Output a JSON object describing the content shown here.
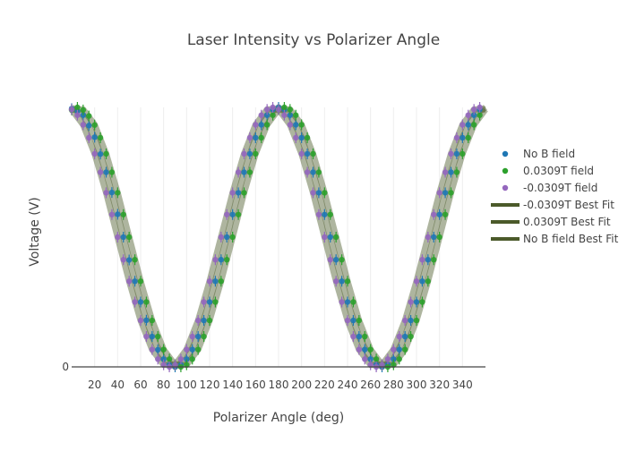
{
  "chart_data": {
    "type": "scatter",
    "title": "Laser Intensity vs Polarizer Angle",
    "xlabel": "Polarizer Angle (deg)",
    "ylabel": "Voltage (V)",
    "xlim": [
      0,
      360
    ],
    "ylim": [
      0,
      1
    ],
    "x_ticks": [
      20,
      40,
      60,
      80,
      100,
      120,
      140,
      160,
      180,
      200,
      220,
      240,
      260,
      280,
      300,
      320,
      340
    ],
    "y_ticks": [
      0
    ],
    "grid": "vertical",
    "legend_position": "right",
    "colors": {
      "no_b": "#1f77b4",
      "pos": "#2ca02c",
      "neg": "#9467bd",
      "fit": "#4b5a2a"
    },
    "series": [
      {
        "name": "No B field",
        "kind": "points",
        "x": [
          0,
          5,
          10,
          15,
          20,
          25,
          30,
          35,
          40,
          45,
          50,
          55,
          60,
          65,
          70,
          75,
          80,
          85,
          90,
          95,
          100,
          105,
          110,
          115,
          120,
          125,
          130,
          135,
          140,
          145,
          150,
          155,
          160,
          165,
          170,
          175,
          180,
          185,
          190,
          195,
          200,
          205,
          210,
          215,
          220,
          225,
          230,
          235,
          240,
          245,
          250,
          255,
          260,
          265,
          270,
          275,
          280,
          285,
          290,
          295,
          300,
          305,
          310,
          315,
          320,
          325,
          330,
          335,
          340,
          345,
          350,
          355
        ],
        "y": [
          0.995,
          0.985,
          0.97,
          0.93,
          0.885,
          0.82,
          0.75,
          0.672,
          0.588,
          0.5,
          0.412,
          0.33,
          0.25,
          0.18,
          0.117,
          0.066,
          0.03,
          0.008,
          0.0,
          0.008,
          0.03,
          0.067,
          0.117,
          0.179,
          0.25,
          0.33,
          0.413,
          0.5,
          0.587,
          0.671,
          0.75,
          0.821,
          0.883,
          0.933,
          0.97,
          0.992,
          1.0,
          0.992,
          0.97,
          0.933,
          0.883,
          0.821,
          0.75,
          0.671,
          0.587,
          0.5,
          0.413,
          0.33,
          0.25,
          0.179,
          0.117,
          0.067,
          0.03,
          0.008,
          0.0,
          0.008,
          0.03,
          0.067,
          0.117,
          0.179,
          0.25,
          0.33,
          0.413,
          0.5,
          0.587,
          0.671,
          0.75,
          0.821,
          0.883,
          0.933,
          0.97,
          0.992
        ]
      },
      {
        "name": "0.0309T field",
        "kind": "points",
        "x": [
          0,
          5,
          10,
          15,
          20,
          25,
          30,
          35,
          40,
          45,
          50,
          55,
          60,
          65,
          70,
          75,
          80,
          85,
          90,
          95,
          100,
          105,
          110,
          115,
          120,
          125,
          130,
          135,
          140,
          145,
          150,
          155,
          160,
          165,
          170,
          175,
          180,
          185,
          190,
          195,
          200,
          205,
          210,
          215,
          220,
          225,
          230,
          235,
          240,
          245,
          250,
          255,
          260,
          265,
          270,
          275,
          280,
          285,
          290,
          295,
          300,
          305,
          310,
          315,
          320,
          325,
          330,
          335,
          340,
          345,
          350,
          355
        ],
        "y": [
          0.99,
          1.0,
          0.99,
          0.967,
          0.932,
          0.883,
          0.821,
          0.75,
          0.671,
          0.587,
          0.5,
          0.413,
          0.33,
          0.25,
          0.179,
          0.117,
          0.067,
          0.03,
          0.008,
          0.0,
          0.008,
          0.03,
          0.067,
          0.117,
          0.179,
          0.25,
          0.33,
          0.413,
          0.5,
          0.587,
          0.671,
          0.75,
          0.821,
          0.883,
          0.933,
          0.97,
          0.992,
          1.0,
          0.992,
          0.97,
          0.933,
          0.883,
          0.821,
          0.75,
          0.671,
          0.587,
          0.5,
          0.413,
          0.33,
          0.25,
          0.179,
          0.117,
          0.067,
          0.03,
          0.008,
          0.0,
          0.008,
          0.03,
          0.067,
          0.117,
          0.179,
          0.25,
          0.33,
          0.413,
          0.5,
          0.587,
          0.671,
          0.75,
          0.821,
          0.883,
          0.933,
          0.97
        ]
      },
      {
        "name": "-0.0309T field",
        "kind": "points",
        "x": [
          0,
          5,
          10,
          15,
          20,
          25,
          30,
          35,
          40,
          45,
          50,
          55,
          60,
          65,
          70,
          75,
          80,
          85,
          90,
          95,
          100,
          105,
          110,
          115,
          120,
          125,
          130,
          135,
          140,
          145,
          150,
          155,
          160,
          165,
          170,
          175,
          180,
          185,
          190,
          195,
          200,
          205,
          210,
          215,
          220,
          225,
          230,
          235,
          240,
          245,
          250,
          255,
          260,
          265,
          270,
          275,
          280,
          285,
          290,
          295,
          300,
          305,
          310,
          315,
          320,
          325,
          330,
          335,
          340,
          345,
          350,
          355
        ],
        "y": [
          0.992,
          0.97,
          0.933,
          0.883,
          0.821,
          0.75,
          0.671,
          0.587,
          0.5,
          0.413,
          0.33,
          0.25,
          0.179,
          0.117,
          0.067,
          0.03,
          0.008,
          0.0,
          0.008,
          0.03,
          0.067,
          0.117,
          0.179,
          0.25,
          0.33,
          0.413,
          0.5,
          0.587,
          0.671,
          0.75,
          0.821,
          0.883,
          0.933,
          0.97,
          0.992,
          1.0,
          0.992,
          0.97,
          0.933,
          0.883,
          0.821,
          0.75,
          0.671,
          0.587,
          0.5,
          0.413,
          0.33,
          0.25,
          0.179,
          0.117,
          0.067,
          0.03,
          0.008,
          0.0,
          0.008,
          0.03,
          0.067,
          0.117,
          0.179,
          0.25,
          0.33,
          0.413,
          0.5,
          0.587,
          0.671,
          0.75,
          0.821,
          0.883,
          0.933,
          0.97,
          0.992,
          1.0
        ]
      },
      {
        "name": "-0.0309T Best Fit",
        "kind": "line",
        "x": [
          0,
          10,
          20,
          30,
          40,
          50,
          60,
          70,
          80,
          90,
          100,
          110,
          120,
          130,
          140,
          150,
          160,
          170,
          180,
          190,
          200,
          210,
          220,
          230,
          240,
          250,
          260,
          270,
          280,
          290,
          300,
          310,
          320,
          330,
          340,
          350,
          360
        ],
        "y": [
          0.992,
          0.933,
          0.821,
          0.671,
          0.5,
          0.33,
          0.179,
          0.067,
          0.008,
          0.008,
          0.067,
          0.179,
          0.33,
          0.5,
          0.671,
          0.821,
          0.933,
          0.992,
          0.992,
          0.933,
          0.821,
          0.671,
          0.5,
          0.33,
          0.179,
          0.067,
          0.008,
          0.008,
          0.067,
          0.179,
          0.33,
          0.5,
          0.671,
          0.821,
          0.933,
          0.992,
          0.992
        ]
      },
      {
        "name": "0.0309T Best Fit",
        "kind": "line",
        "x": [
          0,
          10,
          20,
          30,
          40,
          50,
          60,
          70,
          80,
          90,
          100,
          110,
          120,
          130,
          140,
          150,
          160,
          170,
          180,
          190,
          200,
          210,
          220,
          230,
          240,
          250,
          260,
          270,
          280,
          290,
          300,
          310,
          320,
          330,
          340,
          350,
          360
        ],
        "y": [
          0.992,
          0.992,
          0.933,
          0.821,
          0.671,
          0.5,
          0.33,
          0.179,
          0.067,
          0.008,
          0.008,
          0.067,
          0.179,
          0.33,
          0.5,
          0.671,
          0.821,
          0.933,
          0.992,
          0.992,
          0.933,
          0.821,
          0.671,
          0.5,
          0.33,
          0.179,
          0.067,
          0.008,
          0.008,
          0.067,
          0.179,
          0.33,
          0.5,
          0.671,
          0.821,
          0.933,
          0.992
        ]
      },
      {
        "name": "No B field Best Fit",
        "kind": "line",
        "x": [
          0,
          10,
          20,
          30,
          40,
          50,
          60,
          70,
          80,
          90,
          100,
          110,
          120,
          130,
          140,
          150,
          160,
          170,
          180,
          190,
          200,
          210,
          220,
          230,
          240,
          250,
          260,
          270,
          280,
          290,
          300,
          310,
          320,
          330,
          340,
          350,
          360
        ],
        "y": [
          1.0,
          0.97,
          0.883,
          0.75,
          0.587,
          0.413,
          0.25,
          0.117,
          0.03,
          0.0,
          0.03,
          0.117,
          0.25,
          0.413,
          0.587,
          0.75,
          0.883,
          0.97,
          1.0,
          0.97,
          0.883,
          0.75,
          0.587,
          0.413,
          0.25,
          0.117,
          0.03,
          0.0,
          0.03,
          0.117,
          0.25,
          0.413,
          0.587,
          0.75,
          0.883,
          0.97,
          1.0
        ]
      }
    ]
  }
}
